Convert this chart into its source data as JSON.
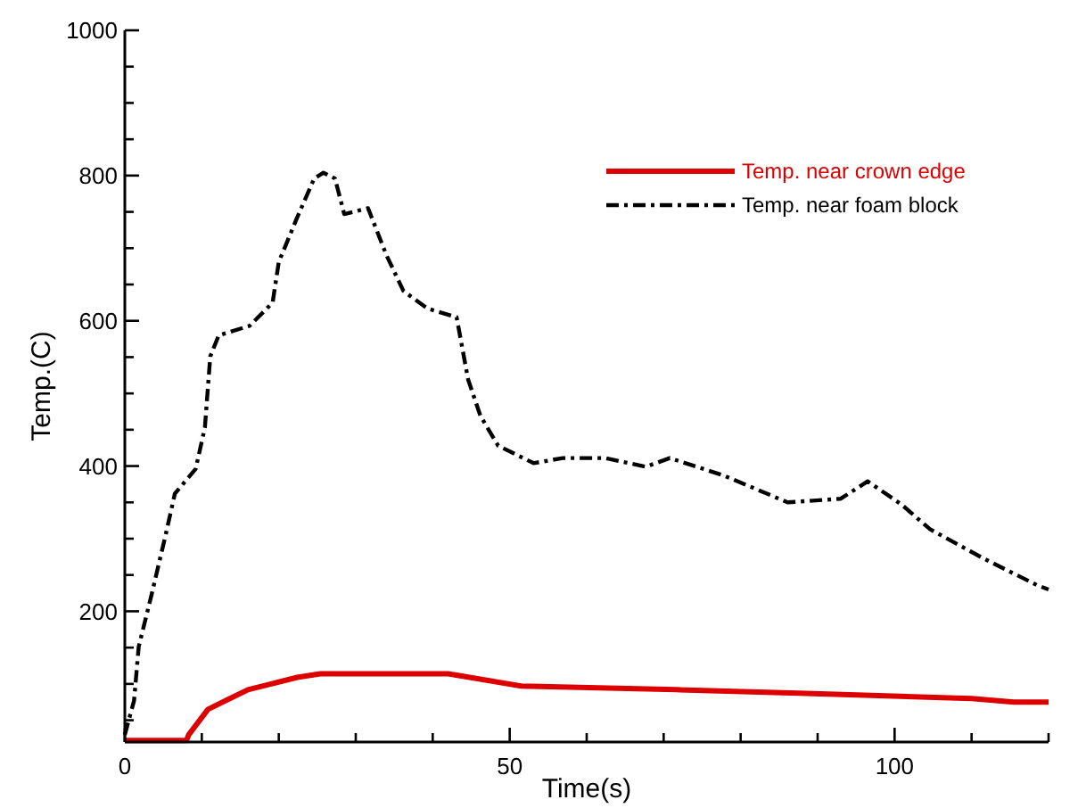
{
  "chart_data": {
    "type": "line",
    "xlabel": "Time(s)",
    "ylabel": "Temp.(C)",
    "xlim": [
      0,
      120
    ],
    "ylim": [
      20,
      1000
    ],
    "xticks": [
      0,
      {
        "value": 10,
        "label": null
      },
      {
        "value": 20,
        "label": null
      },
      {
        "value": 30,
        "label": null
      },
      {
        "value": 40,
        "label": null
      },
      50,
      {
        "value": 60,
        "label": null
      },
      {
        "value": 70,
        "label": null
      },
      {
        "value": 80,
        "label": null
      },
      {
        "value": 90,
        "label": null
      },
      100,
      {
        "value": 110,
        "label": null
      },
      {
        "value": 120,
        "label": null
      }
    ],
    "yticks": [
      {
        "value": 50,
        "label": null
      },
      {
        "value": 100,
        "label": null
      },
      {
        "value": 150,
        "label": null
      },
      200,
      {
        "value": 250,
        "label": null
      },
      {
        "value": 300,
        "label": null
      },
      {
        "value": 350,
        "label": null
      },
      400,
      {
        "value": 450,
        "label": null
      },
      {
        "value": 500,
        "label": null
      },
      {
        "value": 550,
        "label": null
      },
      600,
      {
        "value": 650,
        "label": null
      },
      {
        "value": 700,
        "label": null
      },
      {
        "value": 750,
        "label": null
      },
      800,
      {
        "value": 850,
        "label": null
      },
      {
        "value": 900,
        "label": null
      },
      {
        "value": 950,
        "label": null
      },
      1000
    ],
    "grid": false,
    "legend": "top right",
    "series": [
      {
        "name": "Temp. near crown edge",
        "color": "#dd0000",
        "line_style": "solid",
        "x": [
          0,
          8,
          8.3,
          10.8,
          16,
          22.4,
          25.4,
          42,
          51.5,
          71.6,
          88.5,
          110,
          115.5,
          120
        ],
        "values": [
          22,
          22,
          30,
          65,
          92,
          109,
          114,
          114,
          97,
          92,
          87,
          80,
          75,
          75
        ]
      },
      {
        "name": "Temp. near foam block",
        "color": "#000000",
        "line_style": "dashed",
        "x": [
          0,
          1.2,
          1.8,
          3.5,
          5.3,
          6.5,
          9.2,
          10.4,
          11.1,
          12.2,
          16.2,
          19.2,
          20,
          22.3,
          24.6,
          25.8,
          27.3,
          28.5,
          31.6,
          34,
          36.2,
          39.3,
          43.1,
          44.6,
          46.2,
          48.5,
          53.1,
          56.9,
          62.4,
          67.7,
          70.8,
          77.8,
          86.1,
          93,
          96.5,
          100.9,
          104.6,
          111.5,
          118.5,
          120
        ],
        "values": [
          30,
          77,
          151,
          224,
          305,
          362,
          396,
          453,
          551,
          580,
          593,
          625,
          681,
          740,
          796,
          804,
          796,
          747,
          755,
          690,
          641,
          617,
          605,
          519,
          469,
          428,
          404,
          411,
          411,
          399,
          411,
          387,
          350,
          355,
          379,
          347,
          313,
          273,
          236,
          230
        ]
      }
    ]
  }
}
